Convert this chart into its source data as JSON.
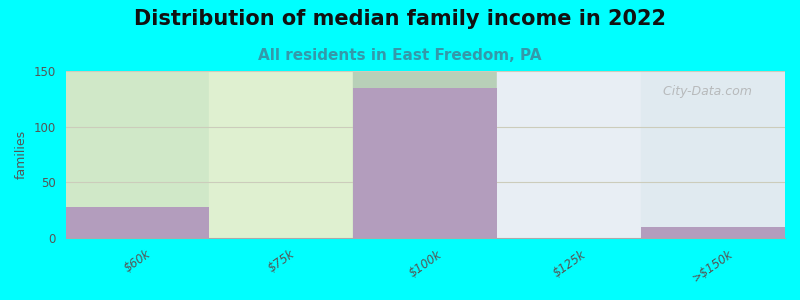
{
  "title": "Distribution of median family income in 2022",
  "subtitle": "All residents in East Freedom, PA",
  "categories": [
    "$60k",
    "$75k",
    "$100k",
    "$125k",
    ">$150k"
  ],
  "values": [
    28,
    0,
    135,
    0,
    10
  ],
  "bar_color": "#b39dbd",
  "bg_color": "#00ffff",
  "plot_bg_left": "#d8ecd0",
  "plot_bg_right": "#e8eef8",
  "ylabel": "families",
  "ylim": [
    0,
    150
  ],
  "yticks": [
    0,
    50,
    100,
    150
  ],
  "title_fontsize": 15,
  "subtitle_fontsize": 11,
  "subtitle_color": "#3399aa",
  "watermark": "  City-Data.com",
  "watermark_icon": "○",
  "grid_color": "#ddddcc",
  "n_cols": 5
}
